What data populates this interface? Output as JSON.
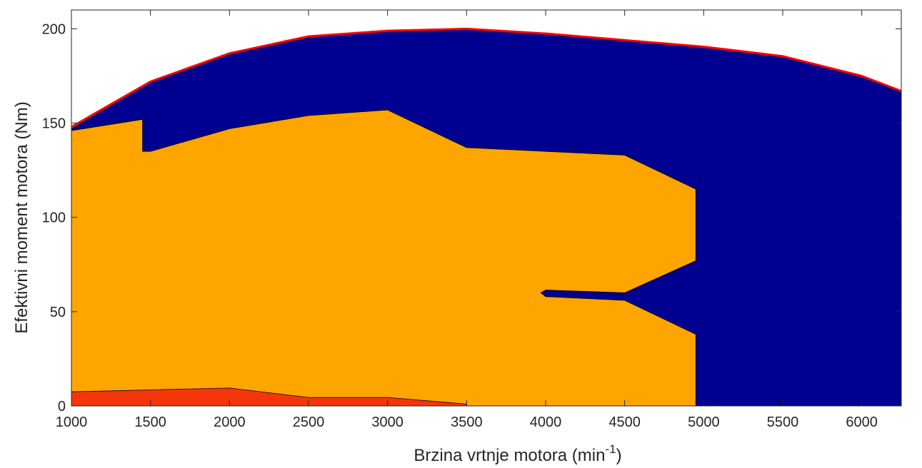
{
  "chart_data": {
    "type": "area",
    "xlabel": "Brzina vrtnje motora (min",
    "xlabel_superscript": "-1",
    "xlabel_suffix": ")",
    "ylabel": "Efektivni moment motora (Nm)",
    "xlim": [
      1000,
      6250
    ],
    "ylim": [
      0,
      210
    ],
    "xticks": [
      1000,
      1500,
      2000,
      2500,
      3000,
      3500,
      4000,
      4500,
      5000,
      5500,
      6000
    ],
    "yticks": [
      0,
      50,
      100,
      150,
      200
    ],
    "grid": false,
    "regions": [
      {
        "color": "#000090",
        "points": [
          [
            1000,
            147
          ],
          [
            1500,
            172
          ],
          [
            2000,
            187
          ],
          [
            2500,
            196
          ],
          [
            3000,
            199
          ],
          [
            3500,
            200
          ],
          [
            4000,
            197.5
          ],
          [
            4500,
            194
          ],
          [
            5000,
            190.5
          ],
          [
            5500,
            185.5
          ],
          [
            6000,
            175
          ],
          [
            6250,
            167
          ],
          [
            6250,
            0
          ],
          [
            1000,
            0
          ]
        ]
      },
      {
        "color": "#ffa500",
        "points": [
          [
            1000,
            146
          ],
          [
            1450,
            152
          ],
          [
            1450,
            135
          ],
          [
            1500,
            135
          ],
          [
            2000,
            147
          ],
          [
            2500,
            154
          ],
          [
            3000,
            157
          ],
          [
            3500,
            137
          ],
          [
            4500,
            133
          ],
          [
            4950,
            115
          ],
          [
            4950,
            77
          ],
          [
            4500,
            60
          ],
          [
            4000,
            61.5
          ],
          [
            3970,
            60
          ],
          [
            4000,
            58
          ],
          [
            4500,
            56
          ],
          [
            4950,
            38
          ],
          [
            4950,
            0
          ],
          [
            1000,
            0
          ]
        ]
      },
      {
        "color": "#f5350a",
        "points": [
          [
            1000,
            7.5
          ],
          [
            1500,
            8.5
          ],
          [
            2000,
            9.5
          ],
          [
            2500,
            4.5
          ],
          [
            3000,
            4.5
          ],
          [
            3500,
            1
          ],
          [
            3500,
            0
          ],
          [
            1000,
            0
          ]
        ]
      }
    ],
    "envelope": {
      "color": "#ff0000",
      "points": [
        [
          1000,
          148
        ],
        [
          1500,
          172
        ],
        [
          2000,
          187
        ],
        [
          2500,
          196
        ],
        [
          3000,
          199
        ],
        [
          3500,
          200
        ],
        [
          4000,
          197.5
        ],
        [
          4500,
          194
        ],
        [
          5000,
          190.5
        ],
        [
          5500,
          185.5
        ],
        [
          6000,
          175
        ],
        [
          6250,
          167
        ]
      ]
    }
  }
}
